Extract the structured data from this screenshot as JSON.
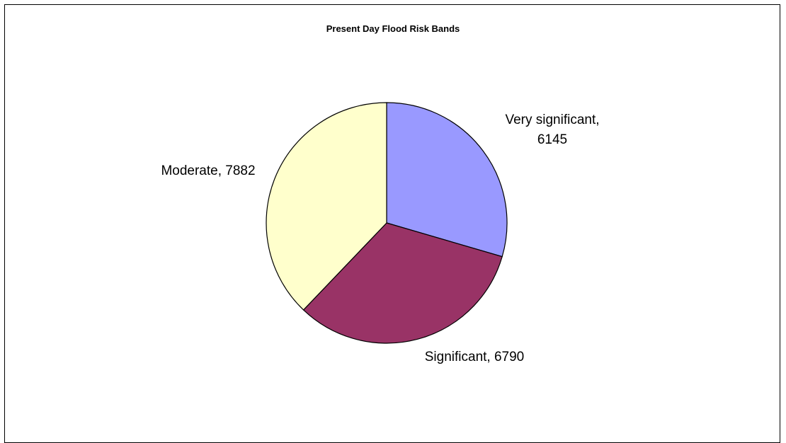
{
  "chart_data": {
    "type": "pie",
    "title": "Present Day Flood Risk Bands",
    "slices": [
      {
        "label": "Very significant",
        "value": 6145,
        "color": "#9999FF",
        "display": [
          "Very significant,",
          "6145"
        ]
      },
      {
        "label": "Significant",
        "value": 6790,
        "color": "#993366",
        "display": [
          "Significant, 6790"
        ]
      },
      {
        "label": "Moderate",
        "value": 7882,
        "color": "#FFFFCC",
        "display": [
          "Moderate, 7882"
        ]
      }
    ],
    "start_angle_deg": 0,
    "direction": "clockwise",
    "legend": "none"
  }
}
